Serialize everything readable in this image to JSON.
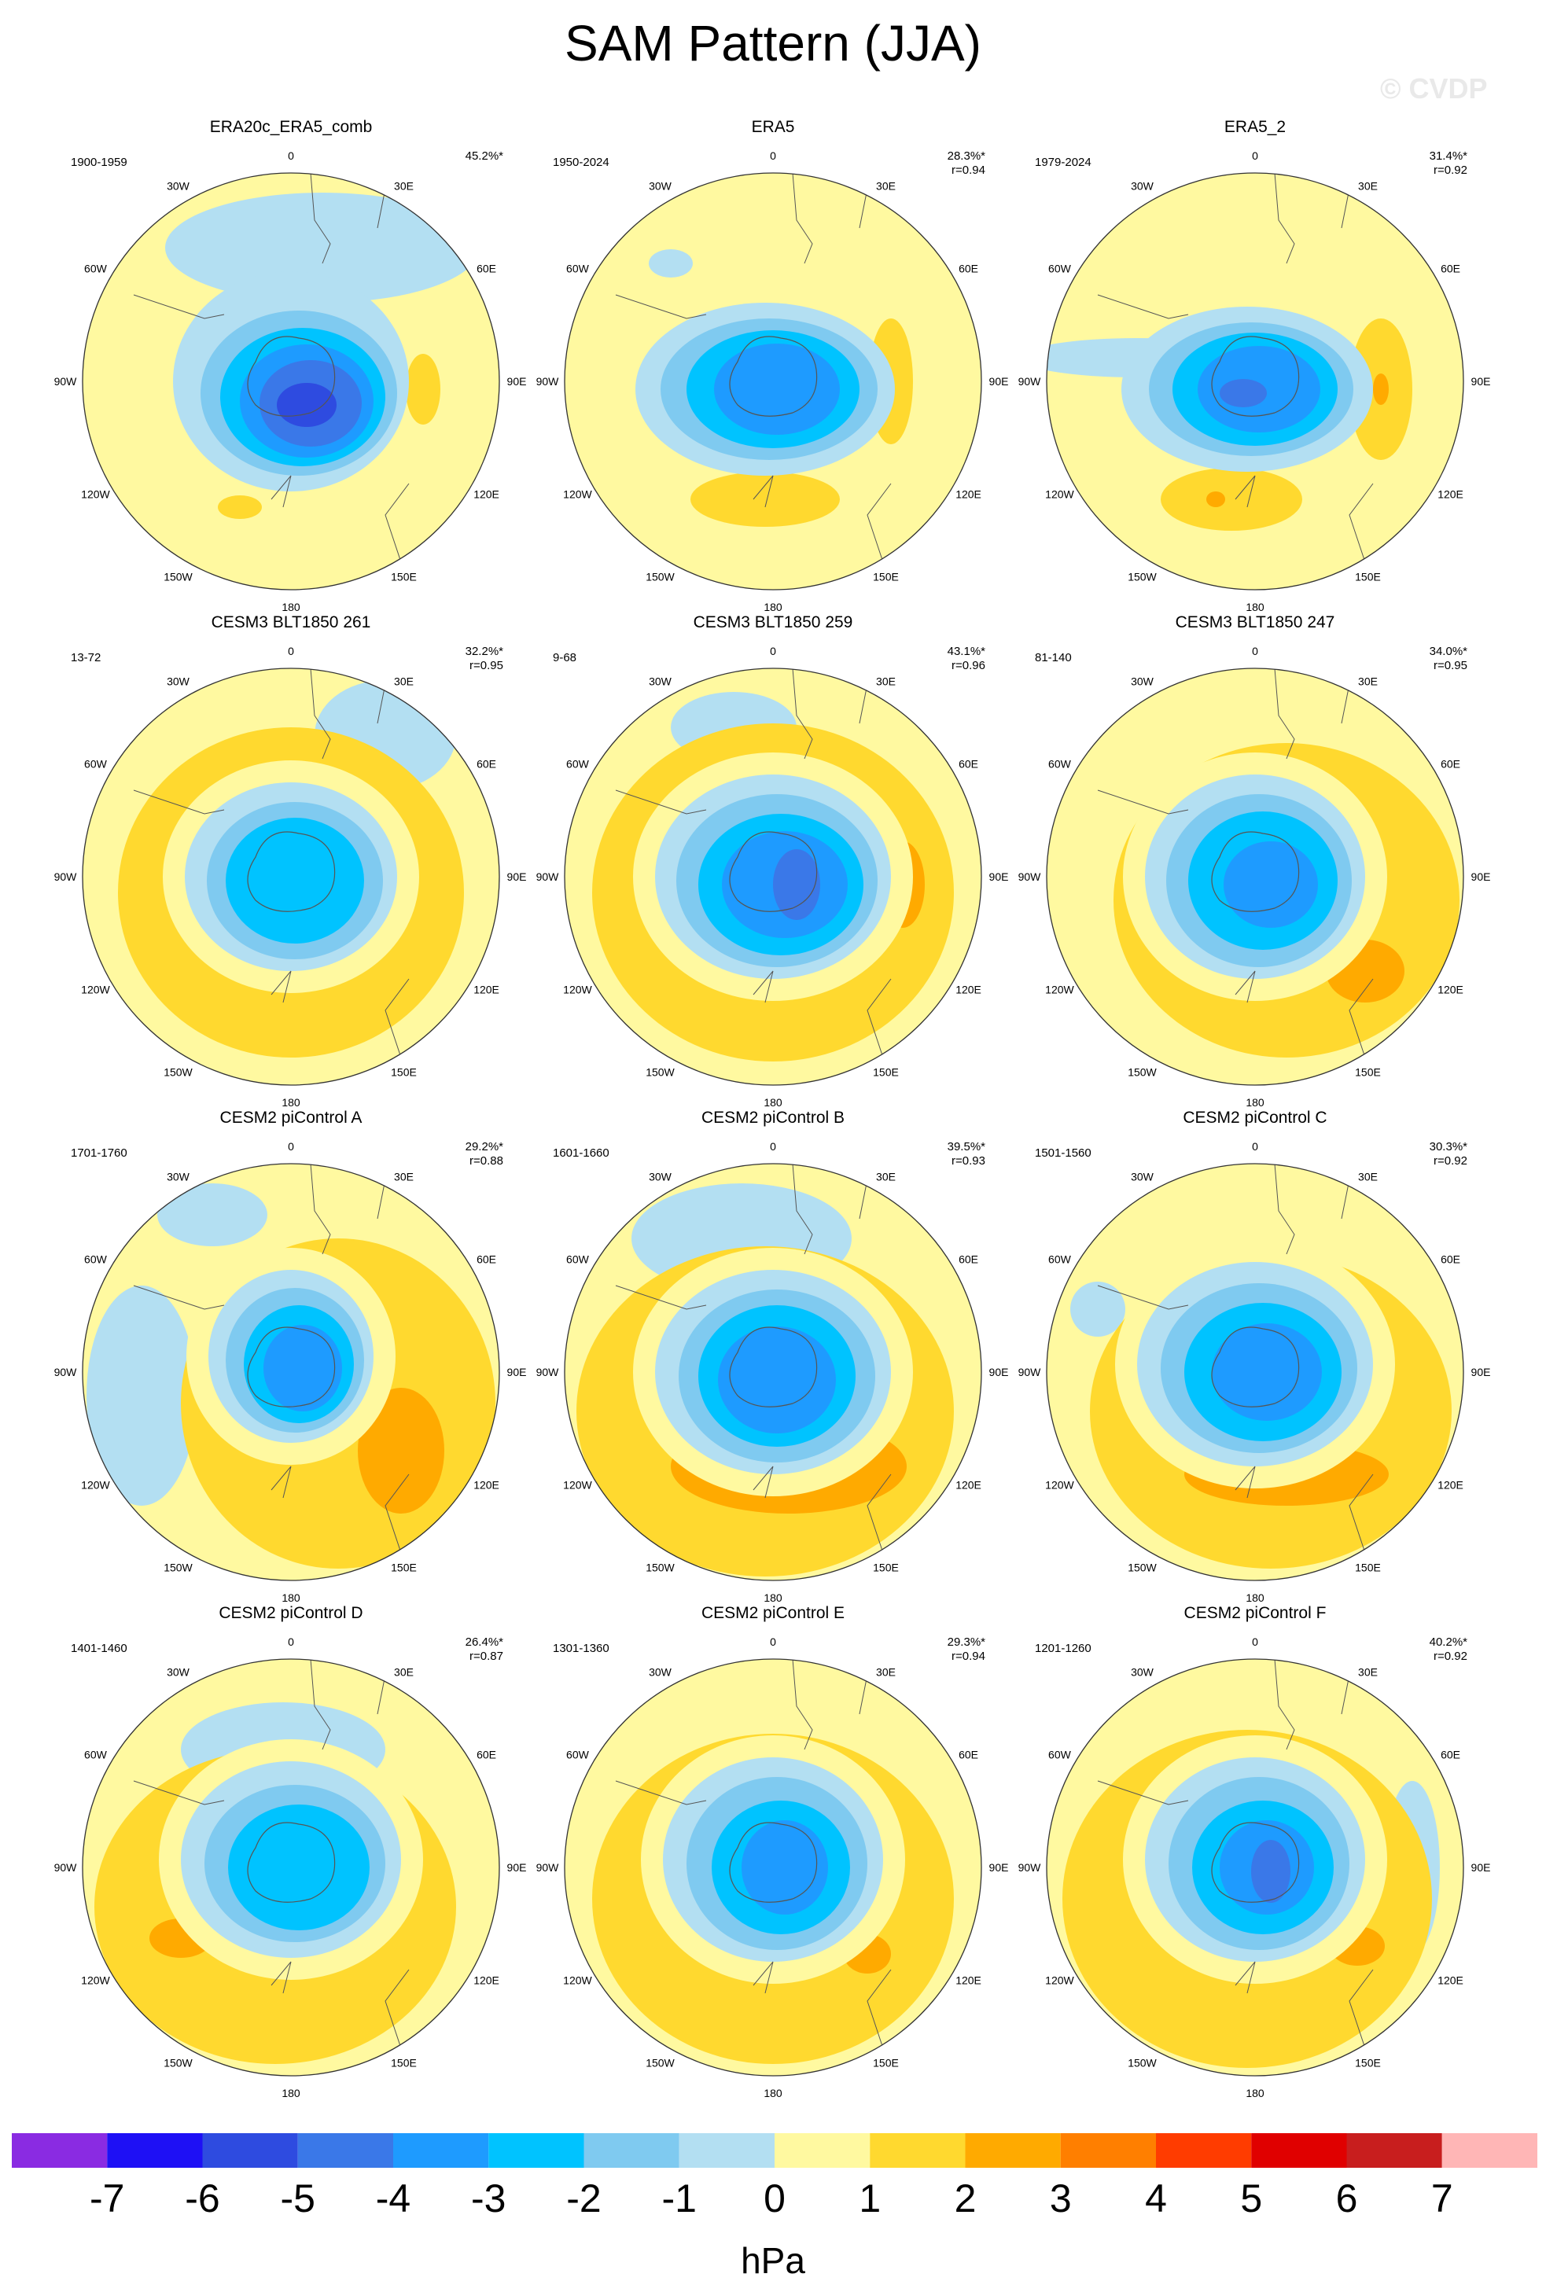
{
  "title": "SAM Pattern (JJA)",
  "watermark": "© CVDP",
  "units": "hPa",
  "colorbar": {
    "labels": [
      "-7",
      "-6",
      "-5",
      "-4",
      "-3",
      "-2",
      "-1",
      "0",
      "1",
      "2",
      "3",
      "4",
      "5",
      "6",
      "7"
    ],
    "colors": [
      "#8a2be2",
      "#1e10f5",
      "#2e4be0",
      "#3a78e8",
      "#1e9bff",
      "#00c3ff",
      "#7fcaf0",
      "#b3dff2",
      "#fff9a0",
      "#ffd92f",
      "#ffaa00",
      "#ff7f00",
      "#ff3c00",
      "#e00000",
      "#c81e1e",
      "#ffb6b6"
    ]
  },
  "lon_labels": [
    "0",
    "30E",
    "60E",
    "90E",
    "120E",
    "150E",
    "180",
    "150W",
    "120W",
    "90W",
    "60W",
    "30W"
  ],
  "panels": [
    {
      "title": "ERA20c_ERA5_comb",
      "period": "1900-1959",
      "pct": "45.2%*",
      "r": ""
    },
    {
      "title": "ERA5",
      "period": "1950-2024",
      "pct": "28.3%*",
      "r": "r=0.94"
    },
    {
      "title": "ERA5_2",
      "period": "1979-2024",
      "pct": "31.4%*",
      "r": "r=0.92"
    },
    {
      "title": "CESM3 BLT1850 261",
      "period": "13-72",
      "pct": "32.2%*",
      "r": "r=0.95"
    },
    {
      "title": "CESM3 BLT1850 259",
      "period": "9-68",
      "pct": "43.1%*",
      "r": "r=0.96"
    },
    {
      "title": "CESM3 BLT1850 247",
      "period": "81-140",
      "pct": "34.0%*",
      "r": "r=0.95"
    },
    {
      "title": "CESM2 piControl A",
      "period": "1701-1760",
      "pct": "29.2%*",
      "r": "r=0.88"
    },
    {
      "title": "CESM2 piControl B",
      "period": "1601-1660",
      "pct": "39.5%*",
      "r": "r=0.93"
    },
    {
      "title": "CESM2 piControl C",
      "period": "1501-1560",
      "pct": "30.3%*",
      "r": "r=0.92"
    },
    {
      "title": "CESM2 piControl D",
      "period": "1401-1460",
      "pct": "26.4%*",
      "r": "r=0.87"
    },
    {
      "title": "CESM2 piControl E",
      "period": "1301-1360",
      "pct": "29.3%*",
      "r": "r=0.94"
    },
    {
      "title": "CESM2 piControl F",
      "period": "1201-1260",
      "pct": "40.2%*",
      "r": "r=0.92"
    }
  ]
}
